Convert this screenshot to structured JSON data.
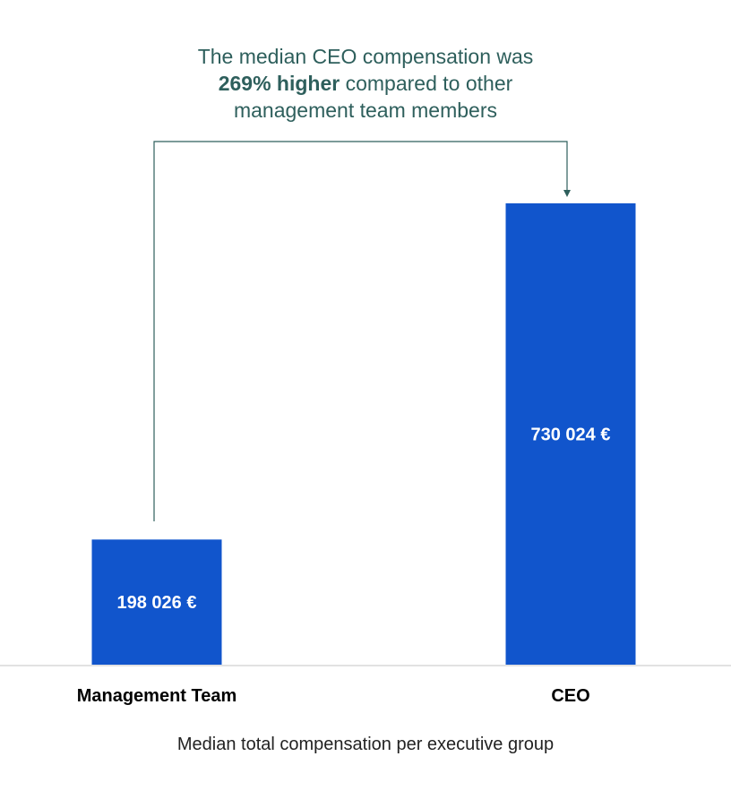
{
  "chart_data": {
    "type": "bar",
    "categories": [
      "Management Team",
      "CEO"
    ],
    "values": [
      198026,
      730024
    ],
    "value_labels": [
      "198 026 €",
      "730 024 €"
    ],
    "title": "",
    "xlabel": "Median total compensation per executive group",
    "ylabel": "",
    "grid": false,
    "annotation": {
      "line1": "The median CEO compensation was",
      "emphasis": "269%  higher",
      "line2_rest": " compared to other",
      "line3": "management team members"
    }
  },
  "colors": {
    "bar": "#1155cc",
    "annotation_text": "#2e5f5c",
    "connector": "#2e5f5c",
    "baseline": "#d9d9d9",
    "bar_label": "#ffffff",
    "category_label": "#000000"
  }
}
